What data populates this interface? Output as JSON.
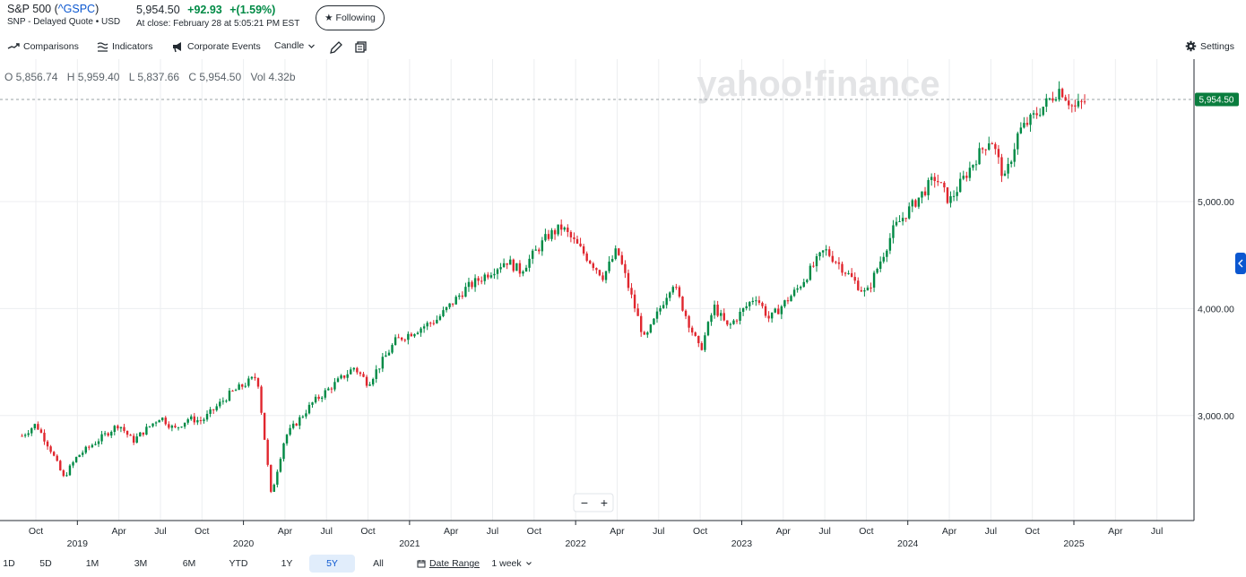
{
  "header": {
    "name": "S&P 500",
    "symbol_open": "(",
    "symbol": "^GSPC",
    "symbol_close": ")",
    "subtitle": "SNP - Delayed Quote • USD",
    "price": "5,954.50",
    "change": "+92.93",
    "change_pct": "+(1.59%)",
    "close_text": "At close: February 28 at 5:05:21 PM EST",
    "follow_label": "Following"
  },
  "toolbar": {
    "comparisons": "Comparisons",
    "indicators": "Indicators",
    "corporate_events": "Corporate Events",
    "chart_type": "Candle",
    "settings": "Settings"
  },
  "ohlc": {
    "open": "O 5,856.74",
    "high": "H 5,959.40",
    "low": "L 5,837.66",
    "close": "C 5,954.50",
    "vol": "Vol 4.32b"
  },
  "watermark": "yahoo!finance",
  "price_tag": "5,954.50",
  "zoom": {
    "minus": "−",
    "plus": "+"
  },
  "colors": {
    "up": "#008a45",
    "down": "#e0262e",
    "accent": "#0b57d0",
    "tag": "#0a7d3e"
  },
  "range": {
    "buttons": [
      "1D",
      "5D",
      "1M",
      "3M",
      "6M",
      "YTD",
      "1Y",
      "5Y",
      "All"
    ],
    "active": "5Y",
    "date_range": "Date Range",
    "interval": "1 week"
  },
  "chart_data": {
    "type": "candlestick",
    "interval": "weekly",
    "y_ticks": [
      "5,000.00",
      "4,000.00",
      "3,000.00"
    ],
    "y_tick_values": [
      5000,
      4000,
      3000
    ],
    "ylim": [
      2150,
      6000
    ],
    "x_month_labels": [
      {
        "label": "Oct",
        "date": "2018-10"
      },
      {
        "label": "Apr",
        "date": "2019-04"
      },
      {
        "label": "Jul",
        "date": "2019-07"
      },
      {
        "label": "Oct",
        "date": "2019-10"
      },
      {
        "label": "Apr",
        "date": "2020-04"
      },
      {
        "label": "Jul",
        "date": "2020-07"
      },
      {
        "label": "Oct",
        "date": "2020-10"
      },
      {
        "label": "Apr",
        "date": "2021-04"
      },
      {
        "label": "Jul",
        "date": "2021-07"
      },
      {
        "label": "Oct",
        "date": "2021-10"
      },
      {
        "label": "Apr",
        "date": "2022-04"
      },
      {
        "label": "Jul",
        "date": "2022-07"
      },
      {
        "label": "Oct",
        "date": "2022-10"
      },
      {
        "label": "Apr",
        "date": "2023-04"
      },
      {
        "label": "Jul",
        "date": "2023-07"
      },
      {
        "label": "Oct",
        "date": "2023-10"
      },
      {
        "label": "Apr",
        "date": "2024-04"
      },
      {
        "label": "Jul",
        "date": "2024-07"
      },
      {
        "label": "Oct",
        "date": "2024-10"
      },
      {
        "label": "Apr",
        "date": "2025-04"
      },
      {
        "label": "Jul",
        "date": "2025-07"
      }
    ],
    "x_year_labels": [
      "2019",
      "2020",
      "2021",
      "2022",
      "2023",
      "2024",
      "2025"
    ],
    "x_year_dates": [
      "2019-01",
      "2020-01",
      "2021-01",
      "2022-01",
      "2023-01",
      "2024-01",
      "2025-01"
    ],
    "closing_trend": [
      {
        "date": "2018-09",
        "close": 2810
      },
      {
        "date": "2018-10",
        "close": 2920
      },
      {
        "date": "2018-11",
        "close": 2700
      },
      {
        "date": "2018-12",
        "close": 2420
      },
      {
        "date": "2019-01",
        "close": 2620
      },
      {
        "date": "2019-03",
        "close": 2820
      },
      {
        "date": "2019-04",
        "close": 2920
      },
      {
        "date": "2019-05",
        "close": 2760
      },
      {
        "date": "2019-07",
        "close": 2990
      },
      {
        "date": "2019-08",
        "close": 2870
      },
      {
        "date": "2019-09",
        "close": 2970
      },
      {
        "date": "2019-10",
        "close": 2950
      },
      {
        "date": "2019-12",
        "close": 3200
      },
      {
        "date": "2020-02",
        "close": 3370
      },
      {
        "date": "2020-03",
        "close": 2250
      },
      {
        "date": "2020-04",
        "close": 2800
      },
      {
        "date": "2020-06",
        "close": 3120
      },
      {
        "date": "2020-09",
        "close": 3450
      },
      {
        "date": "2020-10",
        "close": 3300
      },
      {
        "date": "2020-12",
        "close": 3700
      },
      {
        "date": "2021-03",
        "close": 3900
      },
      {
        "date": "2021-05",
        "close": 4180
      },
      {
        "date": "2021-08",
        "close": 4450
      },
      {
        "date": "2021-09",
        "close": 4350
      },
      {
        "date": "2021-11",
        "close": 4680
      },
      {
        "date": "2021-12",
        "close": 4760
      },
      {
        "date": "2022-03",
        "close": 4300
      },
      {
        "date": "2022-04",
        "close": 4550
      },
      {
        "date": "2022-06",
        "close": 3700
      },
      {
        "date": "2022-08",
        "close": 4250
      },
      {
        "date": "2022-10",
        "close": 3600
      },
      {
        "date": "2022-11",
        "close": 4020
      },
      {
        "date": "2022-12",
        "close": 3820
      },
      {
        "date": "2023-02",
        "close": 4120
      },
      {
        "date": "2023-03",
        "close": 3900
      },
      {
        "date": "2023-05",
        "close": 4180
      },
      {
        "date": "2023-07",
        "close": 4550
      },
      {
        "date": "2023-08",
        "close": 4420
      },
      {
        "date": "2023-10",
        "close": 4130
      },
      {
        "date": "2023-12",
        "close": 4750
      },
      {
        "date": "2024-03",
        "close": 5230
      },
      {
        "date": "2024-04",
        "close": 5000
      },
      {
        "date": "2024-06",
        "close": 5420
      },
      {
        "date": "2024-07",
        "close": 5600
      },
      {
        "date": "2024-08",
        "close": 5200
      },
      {
        "date": "2024-09",
        "close": 5650
      },
      {
        "date": "2024-10",
        "close": 5780
      },
      {
        "date": "2024-12",
        "close": 6060
      },
      {
        "date": "2025-01",
        "close": 5870
      },
      {
        "date": "2025-02",
        "close": 5954.5
      }
    ],
    "last_close": 5954.5
  }
}
